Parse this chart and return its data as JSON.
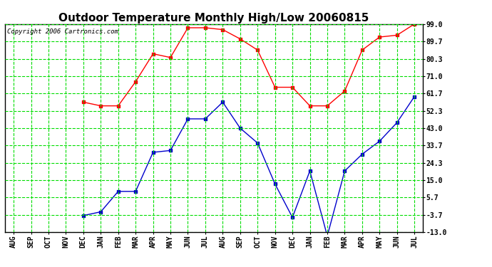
{
  "title": "Outdoor Temperature Monthly High/Low 20060815",
  "copyright": "Copyright 2006 Cartronics.com",
  "x_labels": [
    "AUG",
    "SEP",
    "OCT",
    "NOV",
    "DEC",
    "JAN",
    "FEB",
    "MAR",
    "APR",
    "MAY",
    "JUN",
    "JUL",
    "AUG",
    "SEP",
    "OCT",
    "NOV",
    "DEC",
    "JAN",
    "FEB",
    "MAR",
    "APR",
    "MAY",
    "JUN",
    "JUL"
  ],
  "high_temps": [
    null,
    null,
    null,
    null,
    57.0,
    55.0,
    55.0,
    68.0,
    83.0,
    81.0,
    97.0,
    97.0,
    96.0,
    91.0,
    85.0,
    65.0,
    65.0,
    55.0,
    55.0,
    63.0,
    85.0,
    92.0,
    93.0,
    99.0
  ],
  "low_temps": [
    null,
    null,
    null,
    null,
    -4.0,
    -2.0,
    9.0,
    9.0,
    30.0,
    31.0,
    48.0,
    48.0,
    57.0,
    43.0,
    35.0,
    13.0,
    -5.0,
    20.0,
    -15.0,
    20.0,
    29.0,
    36.0,
    46.0,
    60.0
  ],
  "y_ticks": [
    99.0,
    89.7,
    80.3,
    71.0,
    61.7,
    52.3,
    43.0,
    33.7,
    24.3,
    15.0,
    5.7,
    -3.7,
    -13.0
  ],
  "y_min": -13.0,
  "y_max": 99.0,
  "bg_color": "#ffffff",
  "plot_bg_color": "#ffffff",
  "grid_color": "#00dd00",
  "high_color": "#ff0000",
  "low_color": "#0000cc",
  "title_fontsize": 11,
  "axis_fontsize": 7,
  "copyright_fontsize": 6.5
}
